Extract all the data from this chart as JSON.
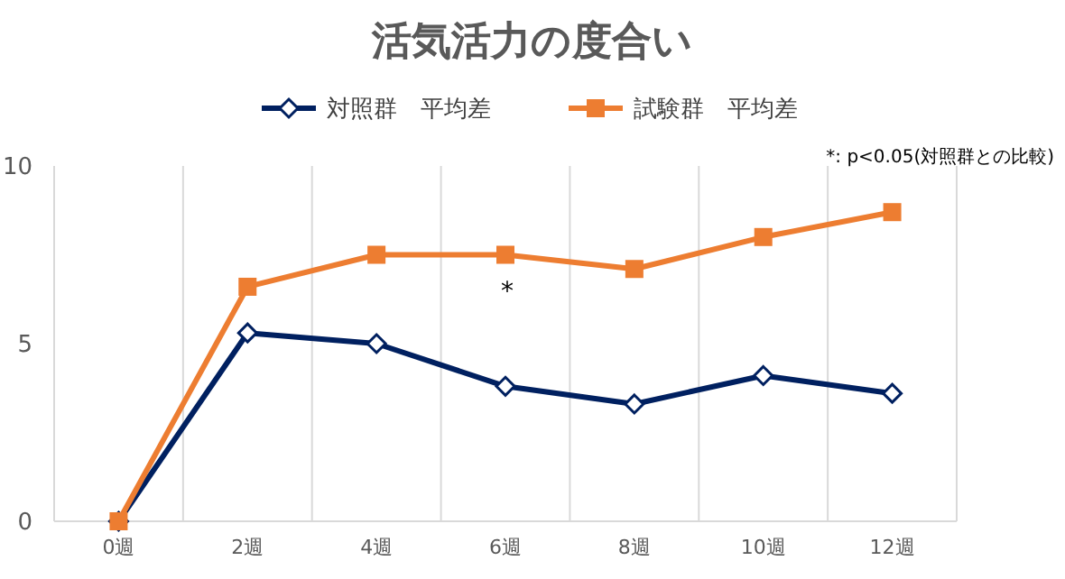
{
  "chart_data": {
    "type": "line",
    "title": "活気活力の度合い",
    "categories": [
      "0週",
      "2週",
      "4週",
      "6週",
      "8週",
      "10週",
      "12週"
    ],
    "series": [
      {
        "name": "対照群　平均差",
        "color": "#002060",
        "marker": "diamond",
        "values": [
          0,
          5.3,
          5.0,
          3.8,
          3.3,
          4.1,
          3.6
        ]
      },
      {
        "name": "試験群　平均差",
        "color": "#ed7d31",
        "marker": "square",
        "values": [
          0,
          6.6,
          7.5,
          7.5,
          7.1,
          8.0,
          8.7
        ]
      }
    ],
    "ylim": [
      0,
      10
    ],
    "yticks": [
      0,
      5,
      10
    ],
    "grid": "x",
    "legend": "top",
    "annotations": [
      "*",
      "*: p<0.05(対照群との比較)"
    ]
  }
}
